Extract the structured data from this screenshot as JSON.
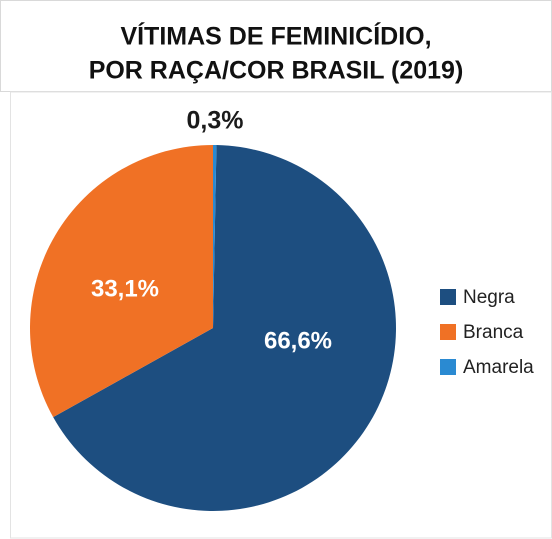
{
  "chart_data": {
    "type": "pie",
    "title": [
      "VÍTIMAS DE FEMINICÍDIO,",
      "POR RAÇA/COR BRASIL (2019)"
    ],
    "categories": [
      "Negra",
      "Branca",
      "Amarela"
    ],
    "values": [
      66.6,
      33.1,
      0.3
    ],
    "value_labels": [
      "66,6%",
      "33,1%",
      "0,3%"
    ],
    "colors": [
      "#1d4e80",
      "#f07125",
      "#2a8ad2"
    ],
    "legend": "right"
  }
}
